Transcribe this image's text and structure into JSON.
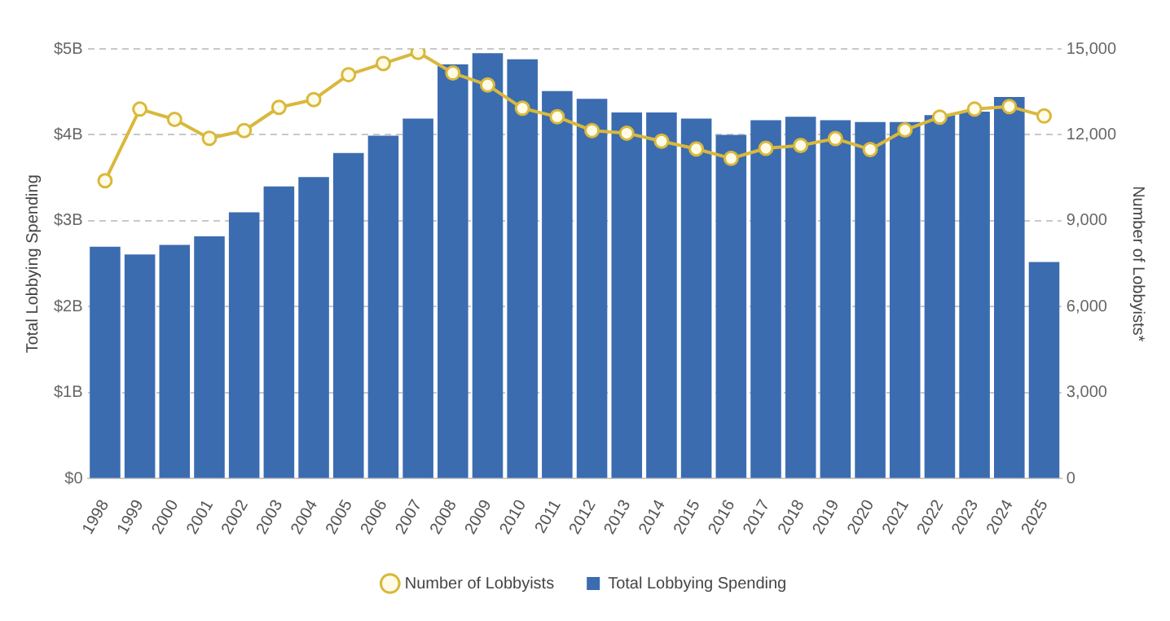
{
  "chart_data": {
    "type": "bar",
    "ylabel": "Total Lobbying Spending",
    "y2label": "Number of Lobbyists*",
    "categories": [
      "1998",
      "1999",
      "2000",
      "2001",
      "2002",
      "2003",
      "2004",
      "2005",
      "2006",
      "2007",
      "2008",
      "2009",
      "2010",
      "2011",
      "2012",
      "2013",
      "2014",
      "2015",
      "2016",
      "2017",
      "2018",
      "2019",
      "2020",
      "2021",
      "2022",
      "2023",
      "2024",
      "2025"
    ],
    "series": [
      {
        "name": "Total Lobbying Spending",
        "color": "#3b6cb0",
        "values": [
          2.7,
          2.61,
          2.72,
          2.82,
          3.1,
          3.4,
          3.51,
          3.79,
          3.99,
          4.19,
          4.82,
          4.95,
          4.88,
          4.51,
          4.42,
          4.26,
          4.26,
          4.19,
          4.0,
          4.17,
          4.21,
          4.17,
          4.15,
          4.15,
          4.23,
          4.27,
          4.44,
          2.52
        ]
      },
      {
        "name": "Number of Lobbyists",
        "type": "line",
        "axis": "y2",
        "color": "#d9b83c",
        "marker": "circle",
        "values": [
          10400,
          12900,
          12540,
          11880,
          12150,
          12960,
          13230,
          14100,
          14490,
          14880,
          14160,
          13740,
          12930,
          12630,
          12150,
          12060,
          11780,
          11510,
          11180,
          11530,
          11630,
          11870,
          11490,
          12170,
          12620,
          12900,
          12990,
          12660
        ]
      }
    ],
    "ylim": [
      0,
      5
    ],
    "yticks": [
      {
        "value": 0,
        "label": "$0"
      },
      {
        "value": 1,
        "label": "$1B"
      },
      {
        "value": 2,
        "label": "$2B"
      },
      {
        "value": 3,
        "label": "$3B"
      },
      {
        "value": 4,
        "label": "$4B"
      },
      {
        "value": 5,
        "label": "$5B"
      }
    ],
    "y2lim": [
      0,
      15000
    ],
    "y2ticks": [
      0,
      {
        "value": 3000,
        "label": "3,000"
      },
      {
        "value": 6000,
        "label": "6,000"
      },
      {
        "value": 9000,
        "label": "9,000"
      },
      {
        "value": 12000,
        "label": "12,000"
      },
      {
        "value": 15000,
        "label": "15,000"
      }
    ],
    "grid": "y",
    "legend": "bottom"
  }
}
